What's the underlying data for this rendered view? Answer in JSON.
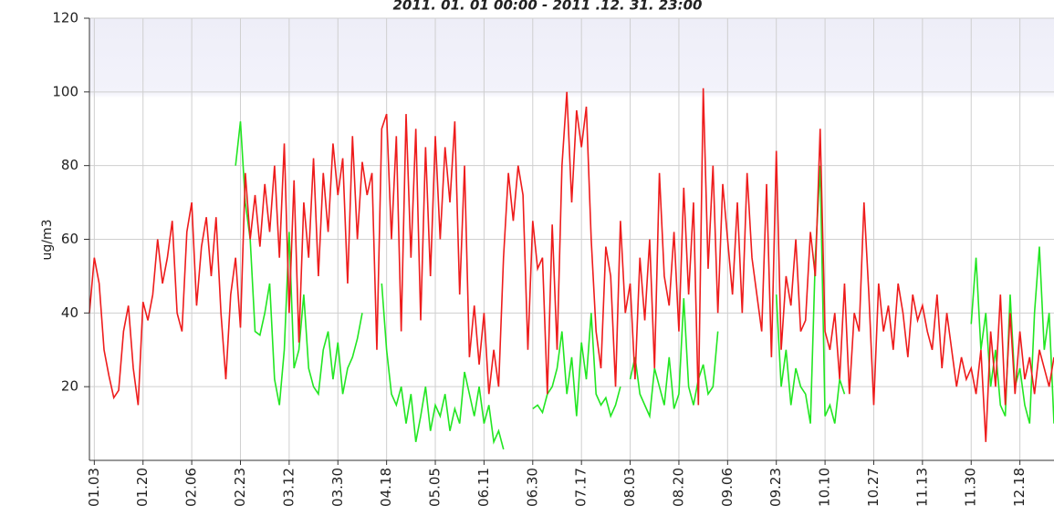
{
  "chart_data": {
    "type": "line",
    "title": "2011. 01. 01 00:00 - 2011 .12. 31. 23:00",
    "y_label": "ug/m3",
    "xlim": [
      0,
      198
    ],
    "xticks": [
      {
        "value": 1,
        "label": "01.03"
      },
      {
        "value": 11,
        "label": "01.20"
      },
      {
        "value": 21,
        "label": "02.06"
      },
      {
        "value": 31,
        "label": "02.23"
      },
      {
        "value": 41,
        "label": "03.12"
      },
      {
        "value": 51,
        "label": "03.30"
      },
      {
        "value": 61,
        "label": "04.18"
      },
      {
        "value": 71,
        "label": "05.05"
      },
      {
        "value": 81,
        "label": "06.11"
      },
      {
        "value": 91,
        "label": "06.30"
      },
      {
        "value": 101,
        "label": "07.17"
      },
      {
        "value": 111,
        "label": "08.03"
      },
      {
        "value": 121,
        "label": "08.20"
      },
      {
        "value": 131,
        "label": "09.06"
      },
      {
        "value": 141,
        "label": "09.23"
      },
      {
        "value": 151,
        "label": "10.10"
      },
      {
        "value": 161,
        "label": "10.27"
      },
      {
        "value": 171,
        "label": "11.13"
      },
      {
        "value": 181,
        "label": "11.30"
      },
      {
        "value": 191,
        "label": "12.18"
      }
    ],
    "ylim": [
      0,
      120
    ],
    "yticks": [
      20,
      40,
      60,
      80,
      100,
      120
    ],
    "grid": true,
    "series": [
      {
        "color": "#ee1c1c",
        "values": [
          40,
          55,
          48,
          30,
          23,
          17,
          19,
          35,
          42,
          25,
          15,
          43,
          38,
          45,
          60,
          48,
          55,
          65,
          40,
          35,
          62,
          70,
          42,
          58,
          66,
          50,
          66,
          40,
          22,
          45,
          55,
          36,
          78,
          60,
          72,
          58,
          75,
          62,
          80,
          55,
          86,
          40,
          76,
          32,
          70,
          55,
          82,
          50,
          78,
          62,
          86,
          72,
          82,
          48,
          88,
          60,
          81,
          72,
          78,
          30,
          90,
          94,
          60,
          88,
          35,
          94,
          55,
          90,
          38,
          85,
          50,
          88,
          60,
          85,
          70,
          92,
          45,
          80,
          28,
          42,
          26,
          40,
          18,
          30,
          20,
          55,
          78,
          65,
          80,
          72,
          30,
          65,
          52,
          55,
          18,
          64,
          30,
          80,
          100,
          70,
          95,
          85,
          96,
          60,
          35,
          25,
          58,
          50,
          20,
          65,
          40,
          48,
          22,
          55,
          38,
          60,
          25,
          78,
          50,
          42,
          62,
          35,
          74,
          45,
          70,
          15,
          101,
          52,
          80,
          40,
          75,
          60,
          45,
          70,
          40,
          78,
          55,
          45,
          35,
          75,
          28,
          84,
          30,
          50,
          42,
          60,
          35,
          38,
          62,
          50,
          90,
          35,
          30,
          40,
          22,
          48,
          18,
          40,
          35,
          70,
          45,
          15,
          48,
          35,
          42,
          30,
          48,
          40,
          28,
          45,
          38,
          42,
          35,
          30,
          45,
          25,
          40,
          30,
          20,
          28,
          22,
          25,
          18,
          30,
          5,
          35,
          20,
          45,
          15,
          40,
          18,
          35,
          22,
          28,
          18,
          30,
          25,
          20,
          28
        ]
      },
      {
        "color": "#22e622",
        "values": [
          null,
          null,
          null,
          null,
          null,
          null,
          null,
          null,
          null,
          null,
          null,
          null,
          null,
          null,
          null,
          null,
          null,
          null,
          null,
          null,
          null,
          null,
          null,
          null,
          null,
          null,
          null,
          null,
          null,
          null,
          80,
          92,
          70,
          60,
          35,
          34,
          40,
          48,
          22,
          15,
          30,
          62,
          25,
          30,
          45,
          25,
          20,
          18,
          30,
          35,
          22,
          32,
          18,
          25,
          28,
          33,
          40,
          null,
          null,
          null,
          48,
          30,
          18,
          15,
          20,
          10,
          18,
          5,
          12,
          20,
          8,
          15,
          12,
          18,
          8,
          14,
          10,
          24,
          18,
          12,
          20,
          10,
          15,
          5,
          8,
          3,
          null,
          null,
          null,
          null,
          null,
          14,
          15,
          13,
          18,
          20,
          25,
          35,
          18,
          28,
          12,
          32,
          22,
          40,
          18,
          15,
          17,
          12,
          15,
          20,
          null,
          22,
          28,
          18,
          15,
          12,
          25,
          20,
          15,
          28,
          14,
          18,
          44,
          20,
          15,
          22,
          26,
          18,
          20,
          35,
          null,
          null,
          null,
          null,
          null,
          null,
          null,
          null,
          null,
          null,
          null,
          45,
          20,
          30,
          15,
          25,
          20,
          18,
          10,
          55,
          80,
          12,
          15,
          10,
          22,
          18,
          null,
          null,
          null,
          null,
          null,
          null,
          null,
          null,
          null,
          null,
          null,
          null,
          null,
          null,
          null,
          null,
          null,
          null,
          null,
          null,
          null,
          null,
          null,
          null,
          null,
          37,
          55,
          30,
          40,
          20,
          30,
          15,
          12,
          45,
          20,
          25,
          15,
          10,
          40,
          58,
          30,
          40,
          10
        ]
      }
    ]
  }
}
